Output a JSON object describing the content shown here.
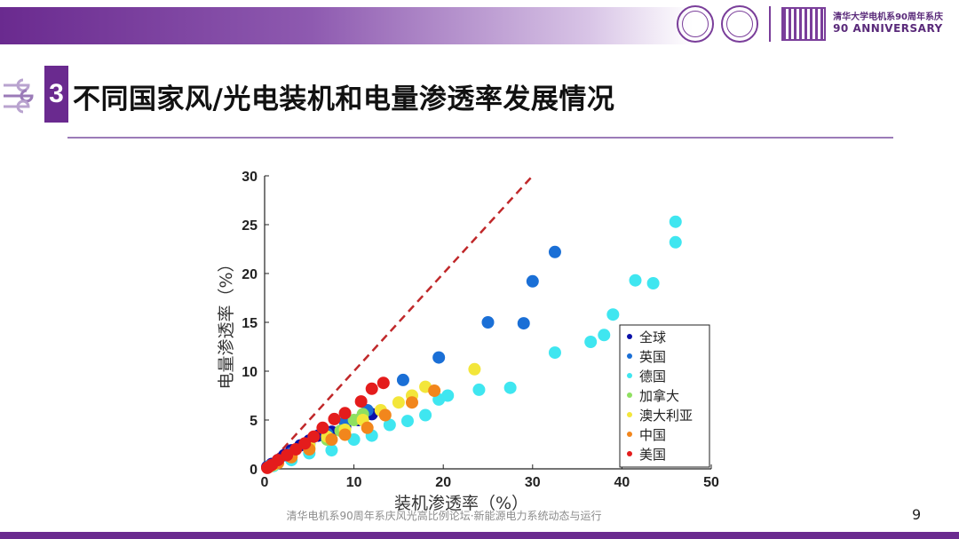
{
  "header": {
    "section_number": "3",
    "title": "不同国家风/光电装机和电量渗透率发展情况",
    "anniversary_line1": "清华大学电机系90周年系庆",
    "anniversary_line2": "90 ANNIVERSARY"
  },
  "footer": {
    "text": "清华电机系90周年系庆风光高比例论坛·新能源电力系统动态与运行",
    "page_number": "9"
  },
  "colors": {
    "accent": "#6a2a8f",
    "reference_line": "#c0282a"
  },
  "chart_data": {
    "type": "scatter",
    "title": "",
    "xlabel": "装机渗透率（%）",
    "ylabel": "电量渗透率（%）",
    "xlim": [
      0,
      50
    ],
    "ylim": [
      0,
      30
    ],
    "xticks": [
      0,
      10,
      20,
      30,
      40,
      50
    ],
    "yticks": [
      0,
      5,
      10,
      15,
      20,
      25,
      30
    ],
    "grid": false,
    "legend_position": "bottom-right",
    "reference_line": {
      "x": [
        0,
        30
      ],
      "y": [
        0,
        30
      ],
      "style": "dashed"
    },
    "series": [
      {
        "name": "全球",
        "color": "#0a10a8",
        "points": [
          [
            0.3,
            0.2
          ],
          [
            0.8,
            0.5
          ],
          [
            1.5,
            0.9
          ],
          [
            2.2,
            1.4
          ],
          [
            3,
            1.9
          ],
          [
            4,
            2.4
          ],
          [
            5,
            2.9
          ],
          [
            6,
            3.4
          ],
          [
            7.5,
            3.8
          ],
          [
            9,
            4.3
          ],
          [
            10.5,
            5.0
          ],
          [
            12,
            5.6
          ]
        ]
      },
      {
        "name": "英国",
        "color": "#1a6fd6",
        "points": [
          [
            0.5,
            0.3
          ],
          [
            1.5,
            0.8
          ],
          [
            3,
            1.6
          ],
          [
            5,
            2.6
          ],
          [
            7,
            3.6
          ],
          [
            9,
            4.8
          ],
          [
            11.5,
            6.0
          ],
          [
            15.5,
            9.1
          ],
          [
            19.5,
            11.4
          ],
          [
            25,
            15.0
          ],
          [
            29,
            14.9
          ],
          [
            30,
            19.2
          ],
          [
            32.5,
            22.2
          ]
        ]
      },
      {
        "name": "德国",
        "color": "#3fe6f0",
        "points": [
          [
            1,
            0.3
          ],
          [
            3,
            0.9
          ],
          [
            5,
            1.6
          ],
          [
            7.5,
            1.9
          ],
          [
            10,
            3.0
          ],
          [
            12,
            3.4
          ],
          [
            14,
            4.5
          ],
          [
            16,
            4.9
          ],
          [
            18,
            5.5
          ],
          [
            19.5,
            7.1
          ],
          [
            20.5,
            7.5
          ],
          [
            24,
            8.1
          ],
          [
            27.5,
            8.3
          ],
          [
            32.5,
            11.9
          ],
          [
            36.5,
            13.0
          ],
          [
            38,
            13.7
          ],
          [
            39,
            15.8
          ],
          [
            41.5,
            19.3
          ],
          [
            43.5,
            19.0
          ],
          [
            46,
            23.2
          ],
          [
            46,
            25.3
          ]
        ]
      },
      {
        "name": "加拿大",
        "color": "#8fe060",
        "points": [
          [
            1,
            0.4
          ],
          [
            3,
            1.2
          ],
          [
            5,
            2.1
          ],
          [
            7,
            3.0
          ],
          [
            8.5,
            3.9
          ],
          [
            10,
            5.0
          ],
          [
            11,
            5.6
          ]
        ]
      },
      {
        "name": "澳大利亚",
        "color": "#f3e63a",
        "points": [
          [
            1,
            0.4
          ],
          [
            3,
            1.3
          ],
          [
            5,
            2.4
          ],
          [
            7,
            3.3
          ],
          [
            9,
            4.0
          ],
          [
            11,
            5.0
          ],
          [
            13,
            6.0
          ],
          [
            15,
            6.8
          ],
          [
            16.5,
            7.5
          ],
          [
            18,
            8.4
          ],
          [
            23.5,
            10.2
          ]
        ]
      },
      {
        "name": "中国",
        "color": "#f2861c",
        "points": [
          [
            0.5,
            0.2
          ],
          [
            1.5,
            0.6
          ],
          [
            3,
            1.2
          ],
          [
            5,
            2.0
          ],
          [
            7.5,
            3.0
          ],
          [
            9,
            3.5
          ],
          [
            11.5,
            4.2
          ],
          [
            13.5,
            5.5
          ],
          [
            16.5,
            6.8
          ],
          [
            19,
            8.0
          ]
        ]
      },
      {
        "name": "美国",
        "color": "#e41c1c",
        "points": [
          [
            0.3,
            0.1
          ],
          [
            0.8,
            0.4
          ],
          [
            1.5,
            0.9
          ],
          [
            2.5,
            1.4
          ],
          [
            3.5,
            2.0
          ],
          [
            4.5,
            2.6
          ],
          [
            5.5,
            3.3
          ],
          [
            6.5,
            4.2
          ],
          [
            7.8,
            5.1
          ],
          [
            9,
            5.7
          ],
          [
            10.8,
            6.9
          ],
          [
            12,
            8.2
          ],
          [
            13.3,
            8.8
          ]
        ]
      }
    ]
  }
}
